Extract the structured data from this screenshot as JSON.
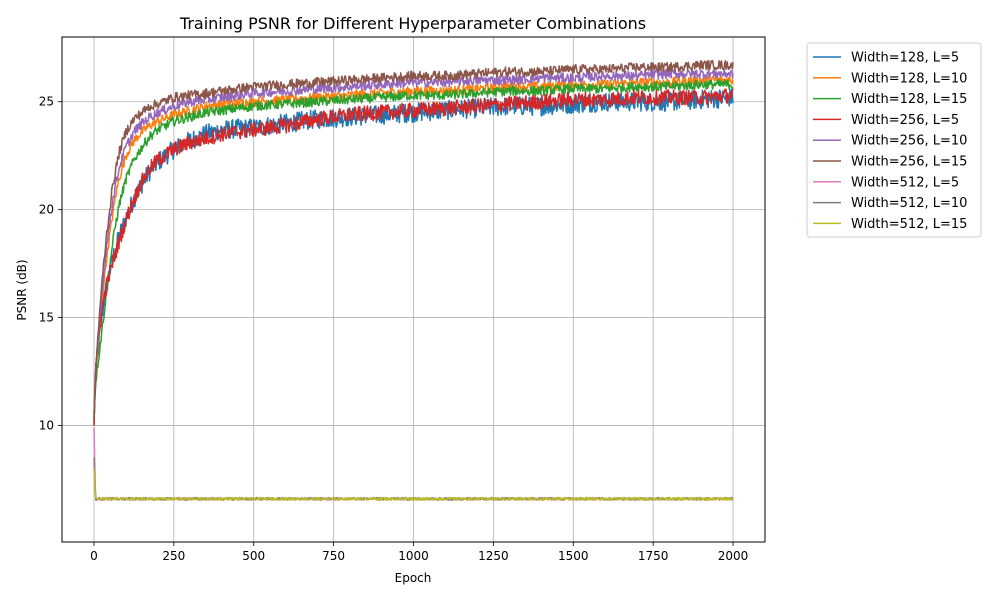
{
  "chart_data": {
    "type": "line",
    "title": "Training PSNR for Different Hyperparameter Combinations",
    "xlabel": "Epoch",
    "ylabel": "PSNR (dB)",
    "xlim": [
      -100,
      2100
    ],
    "ylim": [
      4.6,
      28.0
    ],
    "xticks": [
      0,
      250,
      500,
      750,
      1000,
      1250,
      1500,
      1750,
      2000
    ],
    "yticks": [
      10,
      15,
      20,
      25
    ],
    "grid": true,
    "legend_position": "outside-right",
    "x": [
      0,
      5,
      10,
      20,
      30,
      40,
      50,
      60,
      70,
      80,
      100,
      125,
      150,
      175,
      200,
      250,
      300,
      350,
      400,
      500,
      600,
      700,
      800,
      900,
      1000,
      1100,
      1200,
      1300,
      1400,
      1500,
      1600,
      1700,
      1800,
      1900,
      2000
    ],
    "series": [
      {
        "name": "Width=128, L=5",
        "color": "#1f77b4",
        "noise": 0.45,
        "values": [
          10.0,
          12.2,
          13.0,
          14.5,
          15.6,
          16.5,
          17.2,
          17.8,
          18.3,
          18.8,
          19.6,
          20.5,
          21.2,
          21.8,
          22.2,
          22.8,
          23.2,
          23.5,
          23.7,
          23.8,
          24.0,
          24.2,
          24.3,
          24.4,
          24.5,
          24.6,
          24.7,
          24.8,
          24.8,
          24.9,
          25.0,
          25.0,
          25.0,
          25.1,
          25.2
        ]
      },
      {
        "name": "Width=128, L=10",
        "color": "#ff7f0e",
        "noise": 0.22,
        "values": [
          10.5,
          12.3,
          13.2,
          15.0,
          16.5,
          17.8,
          18.9,
          19.9,
          20.8,
          21.5,
          22.5,
          23.2,
          23.6,
          23.9,
          24.1,
          24.4,
          24.6,
          24.8,
          24.9,
          25.0,
          25.1,
          25.2,
          25.3,
          25.4,
          25.5,
          25.5,
          25.6,
          25.7,
          25.7,
          25.8,
          25.8,
          25.9,
          25.9,
          26.0,
          26.0
        ]
      },
      {
        "name": "Width=128, L=15",
        "color": "#2ca02c",
        "noise": 0.22,
        "values": [
          10.2,
          12.0,
          12.6,
          13.8,
          15.0,
          16.3,
          17.5,
          18.6,
          19.5,
          20.3,
          21.4,
          22.3,
          22.9,
          23.4,
          23.7,
          24.1,
          24.3,
          24.5,
          24.6,
          24.8,
          24.9,
          25.0,
          25.1,
          25.2,
          25.3,
          25.3,
          25.4,
          25.5,
          25.5,
          25.6,
          25.6,
          25.7,
          25.7,
          25.8,
          25.8
        ]
      },
      {
        "name": "Width=256, L=5",
        "color": "#d62728",
        "noise": 0.35,
        "values": [
          10.0,
          12.5,
          13.3,
          14.8,
          15.8,
          16.5,
          17.1,
          17.6,
          18.1,
          18.6,
          19.5,
          20.5,
          21.3,
          21.9,
          22.3,
          22.8,
          23.1,
          23.3,
          23.5,
          23.7,
          23.9,
          24.2,
          24.4,
          24.5,
          24.6,
          24.7,
          24.8,
          24.9,
          25.0,
          25.1,
          25.1,
          25.2,
          25.2,
          25.2,
          25.3
        ]
      },
      {
        "name": "Width=256, L=10",
        "color": "#9467bd",
        "noise": 0.22,
        "values": [
          10.5,
          12.4,
          13.4,
          15.3,
          16.9,
          18.3,
          19.5,
          20.5,
          21.3,
          22.0,
          22.9,
          23.6,
          24.0,
          24.3,
          24.5,
          24.8,
          25.0,
          25.1,
          25.2,
          25.4,
          25.5,
          25.6,
          25.7,
          25.8,
          25.9,
          25.9,
          26.0,
          26.0,
          26.1,
          26.1,
          26.2,
          26.2,
          26.3,
          26.3,
          26.3
        ]
      },
      {
        "name": "Width=256, L=15",
        "color": "#8c564b",
        "noise": 0.22,
        "values": [
          10.3,
          12.5,
          13.6,
          15.7,
          17.4,
          18.9,
          20.1,
          21.2,
          22.0,
          22.7,
          23.6,
          24.2,
          24.5,
          24.8,
          24.9,
          25.2,
          25.3,
          25.4,
          25.5,
          25.7,
          25.8,
          25.9,
          26.0,
          26.1,
          26.2,
          26.2,
          26.3,
          26.4,
          26.4,
          26.5,
          26.5,
          26.6,
          26.6,
          26.7,
          26.7
        ]
      },
      {
        "name": "Width=512, L=5",
        "color": "#e377c2",
        "noise": 0.06,
        "values": [
          9.9,
          6.6,
          6.6,
          6.6,
          6.6,
          6.6,
          6.6,
          6.6,
          6.6,
          6.6,
          6.6,
          6.6,
          6.6,
          6.6,
          6.6,
          6.6,
          6.6,
          6.6,
          6.6,
          6.6,
          6.6,
          6.6,
          6.6,
          6.6,
          6.6,
          6.6,
          6.6,
          6.6,
          6.6,
          6.6,
          6.6,
          6.6,
          6.6,
          6.6,
          6.6
        ]
      },
      {
        "name": "Width=512, L=10",
        "color": "#7f7f7f",
        "noise": 0.06,
        "values": [
          8.5,
          6.6,
          6.6,
          6.6,
          6.6,
          6.6,
          6.6,
          6.6,
          6.6,
          6.6,
          6.6,
          6.6,
          6.6,
          6.6,
          6.6,
          6.6,
          6.6,
          6.6,
          6.6,
          6.6,
          6.6,
          6.6,
          6.6,
          6.6,
          6.6,
          6.6,
          6.6,
          6.6,
          6.6,
          6.6,
          6.6,
          6.6,
          6.6,
          6.6,
          6.6
        ]
      },
      {
        "name": "Width=512, L=15",
        "color": "#bcbd22",
        "noise": 0.06,
        "values": [
          8.0,
          6.6,
          6.6,
          6.6,
          6.6,
          6.6,
          6.6,
          6.6,
          6.6,
          6.6,
          6.6,
          6.6,
          6.6,
          6.6,
          6.6,
          6.6,
          6.6,
          6.6,
          6.6,
          6.6,
          6.6,
          6.6,
          6.6,
          6.6,
          6.6,
          6.6,
          6.6,
          6.6,
          6.6,
          6.6,
          6.6,
          6.6,
          6.6,
          6.6,
          6.6
        ]
      }
    ]
  }
}
